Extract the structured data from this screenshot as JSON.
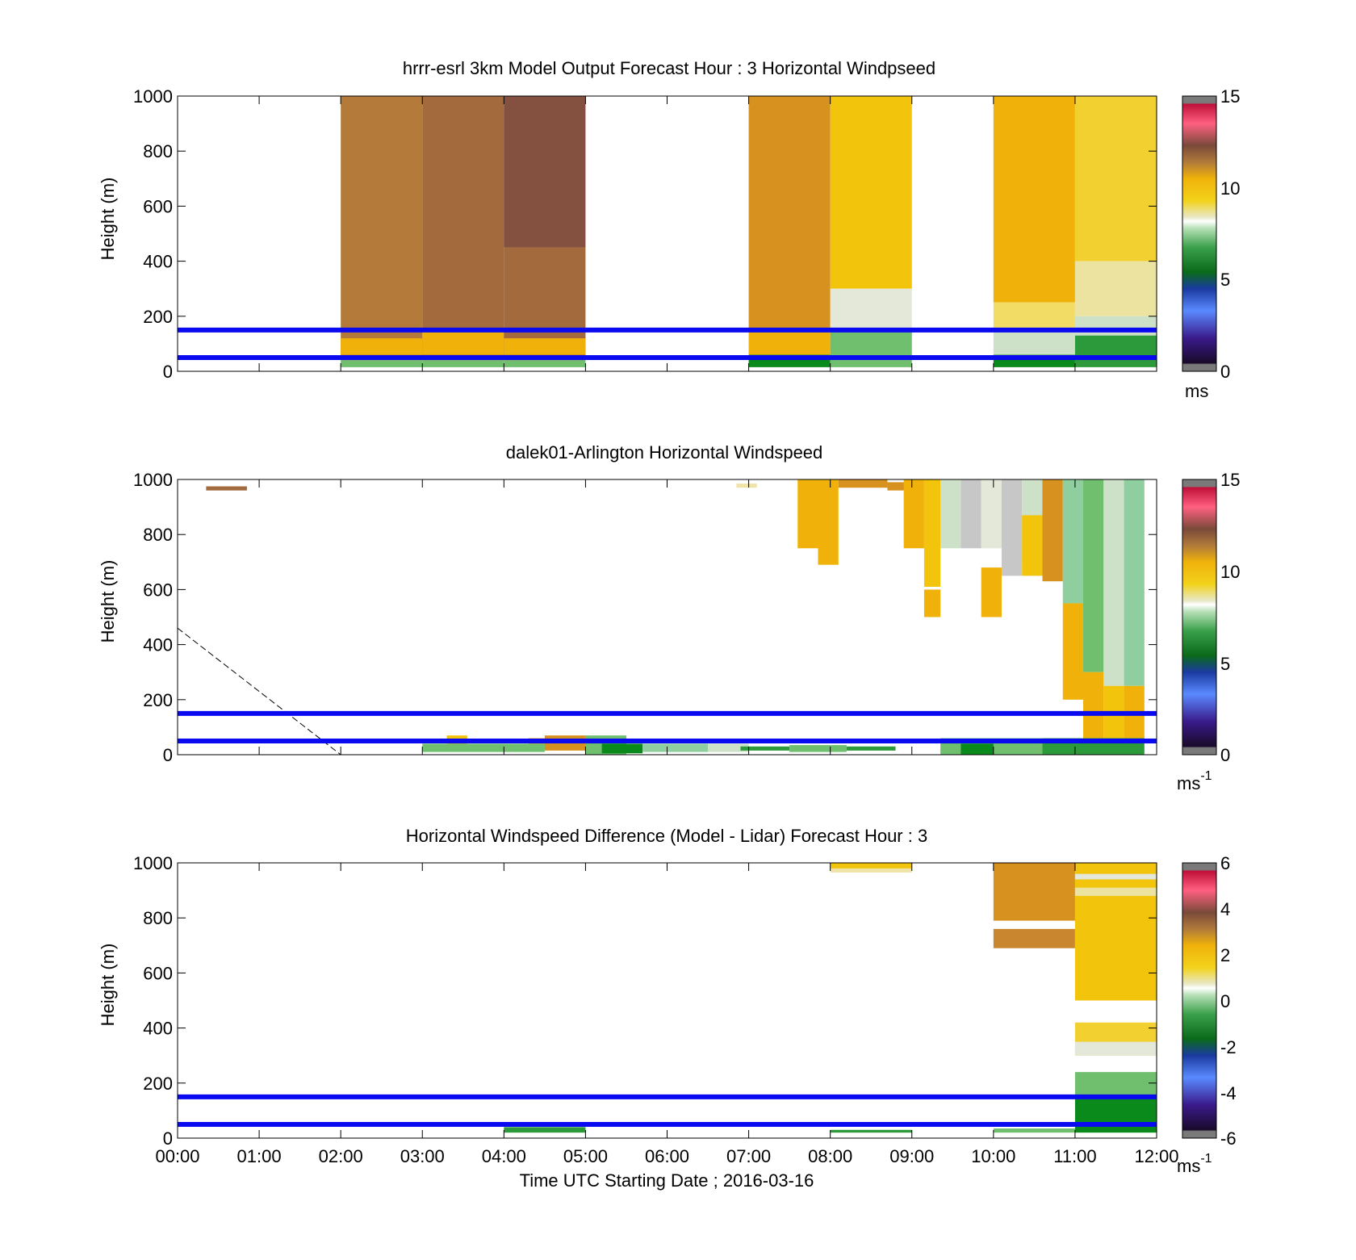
{
  "figure": {
    "xlabel": "Time UTC  Starting Date ; 2016-03-16",
    "x_ticks": [
      "00:00",
      "01:00",
      "02:00",
      "03:00",
      "04:00",
      "05:00",
      "06:00",
      "07:00",
      "08:00",
      "09:00",
      "10:00",
      "11:00",
      "12:00"
    ]
  },
  "chart_data": [
    {
      "type": "heatmap",
      "title": "hrrr-esrl 3km Model Output   Forecast Hour : 3 Horizontal Windpseed",
      "ylabel": "Height (m)",
      "y_ticks": [
        "0",
        "200",
        "400",
        "600",
        "800",
        "1000"
      ],
      "ylim": [
        0,
        1000
      ],
      "xlim": [
        0,
        12
      ],
      "colorbar": {
        "min": 0,
        "max": 15,
        "ticks": [
          "0",
          "5",
          "10",
          "15"
        ],
        "unit_base": "ms",
        "unit_sup": ""
      },
      "reference_lines_m": [
        50,
        150
      ],
      "reference_line_color": "#0a0af0",
      "cells": [
        [
          2,
          3,
          40,
          1000,
          "#b37a3a"
        ],
        [
          2,
          3,
          60,
          120,
          "#f0b20a"
        ],
        [
          2,
          3,
          15,
          40,
          "#6fbf6f"
        ],
        [
          3,
          4,
          40,
          1000,
          "#a36a3e"
        ],
        [
          3,
          4,
          60,
          150,
          "#f0b20a"
        ],
        [
          3,
          4,
          15,
          40,
          "#6fbf6f"
        ],
        [
          4,
          5,
          450,
          1000,
          "#845040"
        ],
        [
          4,
          5,
          40,
          450,
          "#a36a3e"
        ],
        [
          4,
          5,
          60,
          120,
          "#f0b20a"
        ],
        [
          4,
          5,
          15,
          40,
          "#6fbf6f"
        ],
        [
          7,
          8,
          150,
          1000,
          "#d7911e"
        ],
        [
          7,
          8,
          60,
          150,
          "#f0b20a"
        ],
        [
          7,
          8,
          15,
          60,
          "#0a8a1a"
        ],
        [
          8,
          9,
          300,
          1000,
          "#f2c40c"
        ],
        [
          8,
          9,
          150,
          300,
          "#e3e8d9"
        ],
        [
          8,
          9,
          15,
          150,
          "#6fbf6f"
        ],
        [
          10,
          11,
          250,
          1000,
          "#f0b20a"
        ],
        [
          10,
          11,
          150,
          250,
          "#f2dc66"
        ],
        [
          10,
          11,
          60,
          150,
          "#cde0c8"
        ],
        [
          10,
          11,
          15,
          60,
          "#0a8a1a"
        ],
        [
          11,
          12,
          400,
          1000,
          "#f2d030"
        ],
        [
          11,
          12,
          200,
          400,
          "#ece3a0"
        ],
        [
          11,
          12,
          130,
          200,
          "#cde0c8"
        ],
        [
          11,
          12,
          15,
          130,
          "#2c9a3a"
        ]
      ]
    },
    {
      "type": "heatmap",
      "title": "dalek01-Arlington  Horizontal Windspeed",
      "ylabel": "Height (m)",
      "y_ticks": [
        "0",
        "200",
        "400",
        "600",
        "800",
        "1000"
      ],
      "ylim": [
        0,
        1000
      ],
      "xlim": [
        0,
        12
      ],
      "colorbar": {
        "min": 0,
        "max": 15,
        "ticks": [
          "0",
          "5",
          "10",
          "15"
        ],
        "unit_base": "ms",
        "unit_sup": "-1"
      },
      "reference_lines_m": [
        50,
        150
      ],
      "reference_line_color": "#0a0af0",
      "dashed_line": [
        [
          0,
          460
        ],
        [
          2,
          0
        ]
      ],
      "cells": [
        [
          0.35,
          0.85,
          960,
          975,
          "#a36a3e"
        ],
        [
          6.85,
          7.1,
          970,
          985,
          "#f0e3a8"
        ],
        [
          3.3,
          3.55,
          20,
          70,
          "#f2c40c"
        ],
        [
          4.3,
          4.6,
          20,
          60,
          "#f0b20a"
        ],
        [
          4.5,
          5.0,
          15,
          70,
          "#d7911e"
        ],
        [
          5.0,
          5.5,
          0,
          70,
          "#6fbf6f"
        ],
        [
          5.2,
          5.7,
          5,
          40,
          "#0a8a1a"
        ],
        [
          5.7,
          6.5,
          10,
          40,
          "#8fcf9f"
        ],
        [
          6.5,
          7.0,
          10,
          40,
          "#cde0c8"
        ],
        [
          6.9,
          7.5,
          15,
          30,
          "#2c9a3a"
        ],
        [
          7.5,
          8.2,
          10,
          35,
          "#6fbf6f"
        ],
        [
          8.2,
          8.8,
          15,
          30,
          "#2c9a3a"
        ],
        [
          3.0,
          4.5,
          10,
          40,
          "#6fbf6f"
        ],
        [
          7.6,
          7.85,
          750,
          1000,
          "#f0b20a"
        ],
        [
          7.85,
          8.1,
          690,
          1000,
          "#f0b20a"
        ],
        [
          8.1,
          8.7,
          970,
          1000,
          "#d7911e"
        ],
        [
          8.7,
          9.0,
          960,
          990,
          "#d7911e"
        ],
        [
          8.9,
          9.15,
          750,
          1000,
          "#f0b20a"
        ],
        [
          9.15,
          9.35,
          610,
          1000,
          "#f2c40c"
        ],
        [
          9.15,
          9.35,
          500,
          600,
          "#f0b20a"
        ],
        [
          9.35,
          9.6,
          750,
          1000,
          "#cde0c8"
        ],
        [
          9.6,
          9.85,
          750,
          1000,
          "#c7c7c7"
        ],
        [
          9.85,
          10.1,
          750,
          1000,
          "#e3e8d9"
        ],
        [
          10.1,
          10.35,
          650,
          1000,
          "#c7c7c7"
        ],
        [
          9.85,
          10.1,
          500,
          680,
          "#f0b20a"
        ],
        [
          10.35,
          10.6,
          700,
          1000,
          "#cde0c8"
        ],
        [
          10.35,
          10.6,
          650,
          870,
          "#f2c40c"
        ],
        [
          10.6,
          10.85,
          630,
          1000,
          "#d7911e"
        ],
        [
          10.85,
          11.1,
          550,
          1000,
          "#8fcf9f"
        ],
        [
          10.85,
          11.1,
          200,
          550,
          "#f0b20a"
        ],
        [
          11.1,
          11.35,
          300,
          1000,
          "#6fbf6f"
        ],
        [
          11.1,
          11.35,
          60,
          300,
          "#f0b20a"
        ],
        [
          11.35,
          11.6,
          250,
          1000,
          "#cde0c8"
        ],
        [
          11.35,
          11.6,
          60,
          250,
          "#f2c40c"
        ],
        [
          11.6,
          11.85,
          250,
          1000,
          "#8fcf9f"
        ],
        [
          11.6,
          11.85,
          60,
          250,
          "#f0b20a"
        ],
        [
          10.6,
          11.85,
          0,
          60,
          "#2c9a3a"
        ],
        [
          9.35,
          10.6,
          0,
          60,
          "#6fbf6f"
        ],
        [
          9.6,
          10.0,
          0,
          40,
          "#0a8a1a"
        ]
      ]
    },
    {
      "type": "heatmap",
      "title": "Horizontal Windspeed Difference (Model - Lidar) Forecast Hour : 3",
      "ylabel": "Height (m)",
      "y_ticks": [
        "0",
        "200",
        "400",
        "600",
        "800",
        "1000"
      ],
      "ylim": [
        0,
        1000
      ],
      "xlim": [
        0,
        12
      ],
      "colorbar": {
        "min": -6,
        "max": 6,
        "ticks": [
          "-6",
          "-4",
          "-2",
          "0",
          "2",
          "4",
          "6"
        ],
        "unit_base": "ms",
        "unit_sup": "-1"
      },
      "reference_lines_m": [
        50,
        150
      ],
      "reference_line_color": "#0a0af0",
      "cells": [
        [
          8,
          9,
          965,
          1000,
          "#f0e3a8"
        ],
        [
          8,
          9,
          980,
          1000,
          "#f2c40c"
        ],
        [
          10,
          11,
          790,
          1000,
          "#d7911e"
        ],
        [
          10,
          11,
          690,
          760,
          "#c9862e"
        ],
        [
          11,
          12,
          500,
          1000,
          "#f2c40c"
        ],
        [
          11,
          12,
          940,
          960,
          "#e3e8d9"
        ],
        [
          11,
          12,
          880,
          910,
          "#ece3a0"
        ],
        [
          11,
          12,
          300,
          420,
          "#f2d030"
        ],
        [
          11,
          12,
          300,
          350,
          "#e3e8d9"
        ],
        [
          11,
          12,
          150,
          240,
          "#6fbf6f"
        ],
        [
          11,
          12,
          20,
          150,
          "#0a8a1a"
        ],
        [
          4,
          5,
          20,
          40,
          "#2c9a3a"
        ],
        [
          8,
          9,
          20,
          30,
          "#2c9a3a"
        ],
        [
          10,
          11,
          20,
          35,
          "#6fbf6f"
        ]
      ]
    }
  ]
}
